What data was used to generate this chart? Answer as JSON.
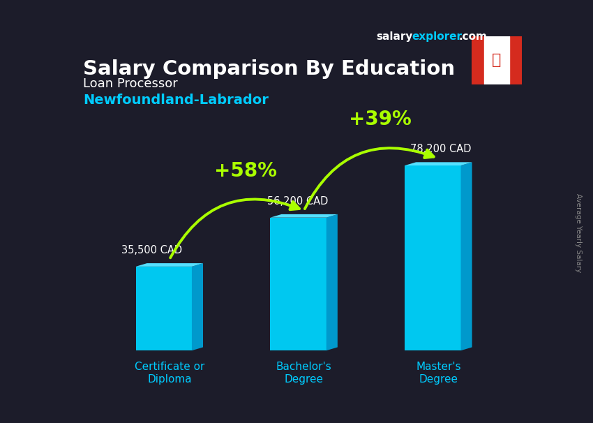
{
  "title": "Salary Comparison By Education",
  "subtitle1": "Loan Processor",
  "subtitle2": "Newfoundland-Labrador",
  "categories": [
    "Certificate or\nDiploma",
    "Bachelor's\nDegree",
    "Master's\nDegree"
  ],
  "values": [
    35500,
    56200,
    78200
  ],
  "value_labels": [
    "35,500 CAD",
    "56,200 CAD",
    "78,200 CAD"
  ],
  "bar_color_face": "#00c8f0",
  "bar_color_top": "#55e0ff",
  "bar_color_side": "#0099cc",
  "pct_labels": [
    "+58%",
    "+39%"
  ],
  "pct_color": "#aaff00",
  "bg_color": "#1c1c2a",
  "title_color": "#ffffff",
  "subtitle1_color": "#ffffff",
  "subtitle2_color": "#00ccff",
  "value_label_color": "#ffffff",
  "cat_label_color": "#00ccff",
  "side_label_color": "#888888",
  "site_salary_color": "#ffffff",
  "site_explorer_color": "#00ccff",
  "site_domain_color": "#ffffff",
  "ylabel_rotated": "Average Yearly Salary"
}
